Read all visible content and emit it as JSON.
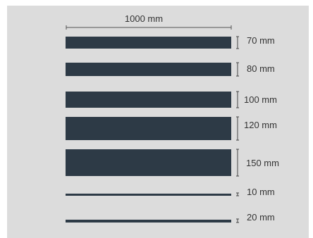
{
  "diagram": {
    "width_label": "1000 mm",
    "bar_color": "#2d3a46",
    "background_color": "#dcdcdc",
    "profiles": [
      {
        "label": "70 mm"
      },
      {
        "label": "80 mm"
      },
      {
        "label": "100 mm"
      },
      {
        "label": "120 mm"
      },
      {
        "label": "150 mm"
      },
      {
        "label": "10 mm"
      },
      {
        "label": "20 mm"
      }
    ]
  }
}
